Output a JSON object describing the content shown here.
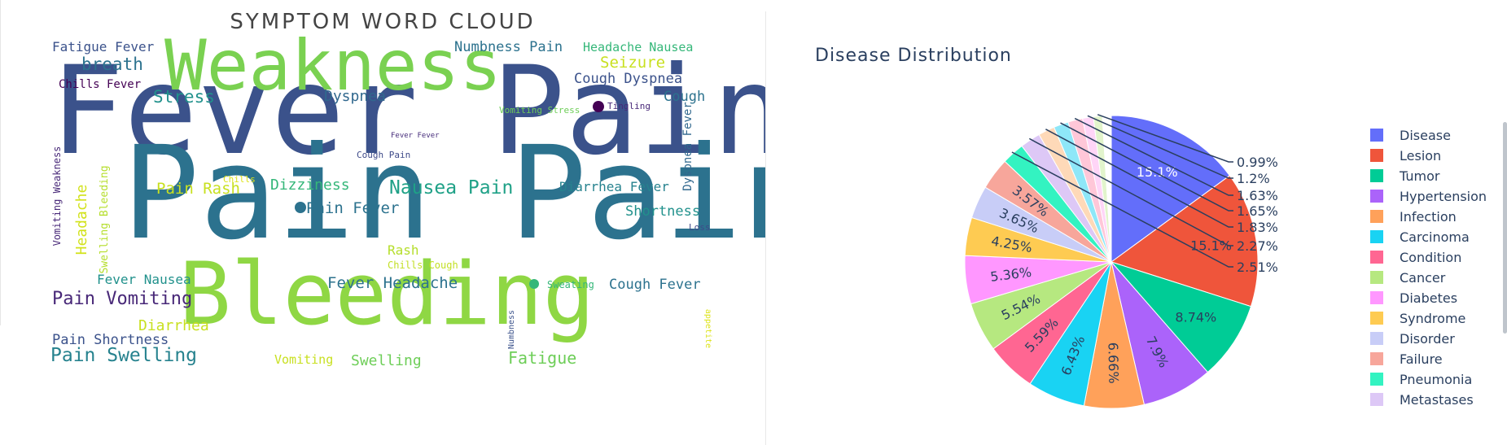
{
  "wordcloud": {
    "title": "SYMPTOM WORD CLOUD",
    "words": [
      {
        "text": "Fever Pain",
        "color": "#3b528b"
      },
      {
        "text": "Pain Pain",
        "color": "#2c728e"
      },
      {
        "text": "Weakness",
        "color": "#7ad151"
      },
      {
        "text": "Bleeding",
        "color": "#8fd744"
      },
      {
        "text": "Fatigue Fever",
        "color": "#3b528b"
      },
      {
        "text": "breath",
        "color": "#2c728e"
      },
      {
        "text": "Chills Fever",
        "color": "#440154"
      },
      {
        "text": "Stress",
        "color": "#21918c"
      },
      {
        "text": "Dyspnea",
        "color": "#31688e"
      },
      {
        "text": "Numbness Pain",
        "color": "#2c728e"
      },
      {
        "text": "Headache Nausea",
        "color": "#35b779"
      },
      {
        "text": "Seizure",
        "color": "#c8e020"
      },
      {
        "text": "Cough Dyspnea",
        "color": "#3b528b"
      },
      {
        "text": "Cough",
        "color": "#2c728e"
      },
      {
        "text": "Tingling",
        "color": "#482878"
      },
      {
        "text": "Vomiting Stress",
        "color": "#6ece58"
      },
      {
        "text": "Fever Fever",
        "color": "#472d7b"
      },
      {
        "text": "Cough Pain",
        "color": "#3e4a89"
      },
      {
        "text": "Dyspnea Fever",
        "color": "#31688e"
      },
      {
        "text": "Vomiting Weakness",
        "color": "#482878"
      },
      {
        "text": "Headache",
        "color": "#d2e21b"
      },
      {
        "text": "Swelling Bleeding",
        "color": "#b5de2b"
      },
      {
        "text": "Chills",
        "color": "#dde318"
      },
      {
        "text": "Pain Rash",
        "color": "#c8e020"
      },
      {
        "text": "Dizziness",
        "color": "#35b779"
      },
      {
        "text": "Nausea Pain",
        "color": "#1fa187"
      },
      {
        "text": "Diarrhea Fever",
        "color": "#26828e"
      },
      {
        "text": "Pain Fever",
        "color": "#2c728e"
      },
      {
        "text": "Shortness",
        "color": "#21918c"
      },
      {
        "text": "Loss",
        "color": "#3e4a89"
      },
      {
        "text": "Rash",
        "color": "#b5de2b"
      },
      {
        "text": "Chills Cough",
        "color": "#c2df23"
      },
      {
        "text": "Fever Nausea",
        "color": "#21918c"
      },
      {
        "text": "Fever Headache",
        "color": "#2c728e"
      },
      {
        "text": "Sweating",
        "color": "#35b779"
      },
      {
        "text": "Cough Fever",
        "color": "#2c728e"
      },
      {
        "text": "Pain Vomiting",
        "color": "#482878"
      },
      {
        "text": "Diarrhea",
        "color": "#c8e020"
      },
      {
        "text": "Pain Shortness",
        "color": "#3b528b"
      },
      {
        "text": "Pain Swelling",
        "color": "#26828e"
      },
      {
        "text": "Vomiting",
        "color": "#c8e020"
      },
      {
        "text": "Swelling",
        "color": "#6ece58"
      },
      {
        "text": "Fatigue",
        "color": "#6ece58"
      },
      {
        "text": "Numbness",
        "color": "#3b528b"
      },
      {
        "text": "appetite",
        "color": "#dde318"
      }
    ]
  },
  "chart_data": {
    "type": "pie",
    "title": "Disease Distribution",
    "legend_position": "right",
    "labels": [
      "Disease",
      "Lesion",
      "Tumor",
      "Hypertension",
      "Infection",
      "Carcinoma",
      "Condition",
      "Cancer",
      "Diabetes",
      "Syndrome",
      "Disorder",
      "Failure",
      "Pneumonia",
      "Metastases",
      "",
      "",
      "",
      "",
      "",
      ""
    ],
    "values": [
      15.1,
      15.1,
      8.74,
      7.9,
      6.66,
      6.43,
      5.59,
      5.54,
      5.36,
      4.25,
      3.65,
      3.57,
      2.51,
      2.27,
      1.83,
      1.65,
      1.63,
      1.2,
      0.99,
      0.99
    ],
    "value_labels": [
      "15.1%",
      "15.1%",
      "8.74%",
      "7.9%",
      "6.66%",
      "6.43%",
      "5.59%",
      "5.54%",
      "5.36%",
      "4.25%",
      "3.65%",
      "3.57%",
      "2.51%",
      "2.27%",
      "1.83%",
      "1.65%",
      "1.63%",
      "1.2%",
      "0.99%",
      ""
    ],
    "colors": [
      "#636efa",
      "#ef553b",
      "#00cc96",
      "#ab63fa",
      "#ffa15a",
      "#19d3f3",
      "#ff6692",
      "#b6e880",
      "#ff97ff",
      "#fecb52",
      "#c8cdf7",
      "#f7a69b",
      "#33f3c1",
      "#ddc8f6",
      "#fed9b8",
      "#8ee7f8",
      "#ffc7d8",
      "#ffd5f7",
      "#e2f4cc",
      "#ffffff"
    ]
  }
}
